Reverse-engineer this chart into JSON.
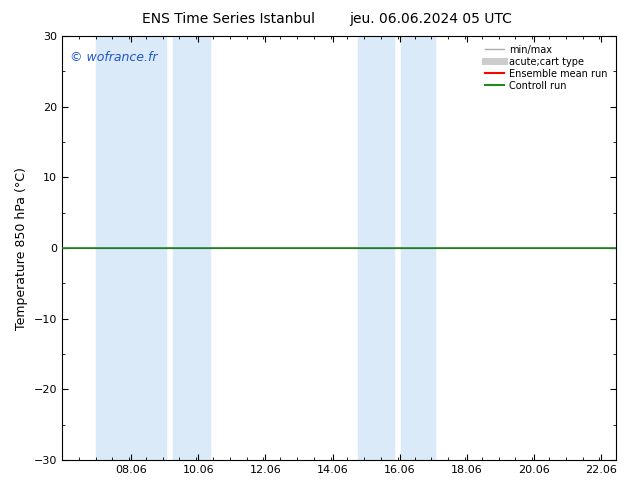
{
  "title_left": "ENS Time Series Istanbul",
  "title_right": "jeu. 06.06.2024 05 UTC",
  "ylabel": "Temperature 850 hPa (°C)",
  "ylim": [
    -30,
    30
  ],
  "yticks": [
    -30,
    -20,
    -10,
    0,
    10,
    20,
    30
  ],
  "xlim": [
    6.0,
    22.5
  ],
  "xticks": [
    8.06,
    10.06,
    12.06,
    14.06,
    16.06,
    18.06,
    20.06,
    22.06
  ],
  "xtick_labels": [
    "08.06",
    "10.06",
    "12.06",
    "14.06",
    "16.06",
    "18.06",
    "20.06",
    "22.06"
  ],
  "watermark": "© wofrance.fr",
  "shaded_bands": [
    {
      "xmin": 7.0,
      "xmax": 9.1
    },
    {
      "xmin": 9.3,
      "xmax": 10.4
    },
    {
      "xmin": 14.8,
      "xmax": 15.9
    },
    {
      "xmin": 16.1,
      "xmax": 17.1
    }
  ],
  "shaded_color": "#daeaf8",
  "hline_y": 0,
  "hline_color": "#228822",
  "hline_color2": "#333333",
  "background_color": "#ffffff",
  "legend_items": [
    {
      "label": "min/max",
      "color": "#aaaaaa",
      "lw": 1.0,
      "style": "-"
    },
    {
      "label": "acute;cart type",
      "color": "#cccccc",
      "lw": 5,
      "style": "-"
    },
    {
      "label": "Ensemble mean run",
      "color": "#ff0000",
      "lw": 1.5,
      "style": "-"
    },
    {
      "label": "Controll run",
      "color": "#228822",
      "lw": 1.5,
      "style": "-"
    }
  ],
  "title_fontsize": 10,
  "tick_fontsize": 8,
  "ylabel_fontsize": 9,
  "watermark_fontsize": 9,
  "watermark_color": "#2255cc"
}
